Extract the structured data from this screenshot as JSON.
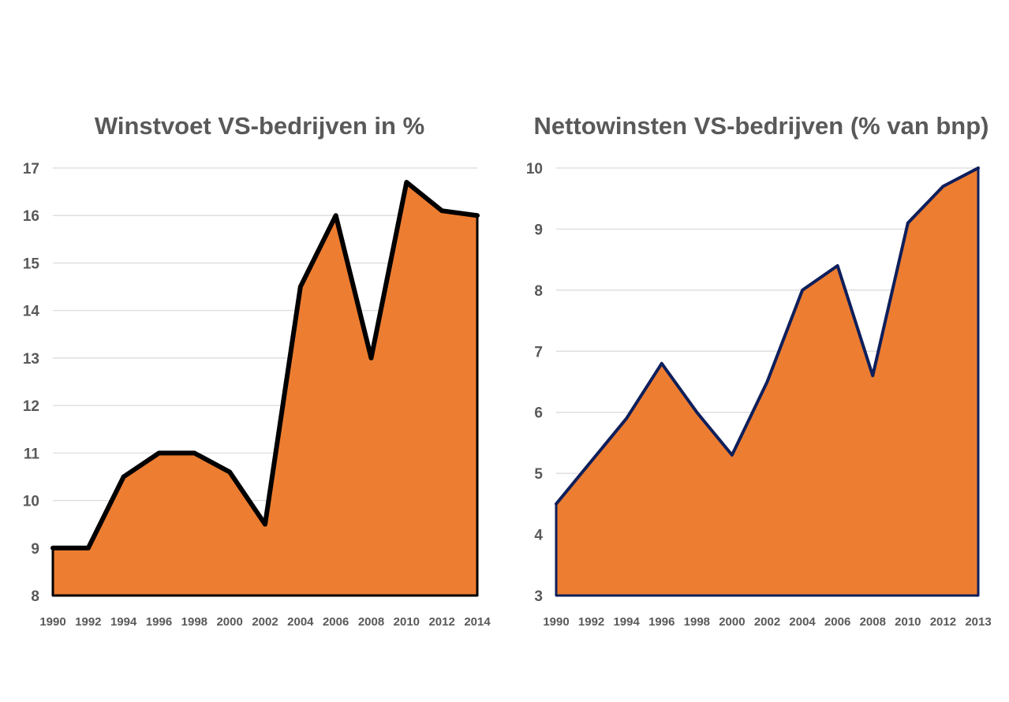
{
  "chart_data": [
    {
      "type": "area",
      "title": "Winstvoet VS-bedrijven  in %",
      "xlabel": "",
      "ylabel": "",
      "ylim": [
        8,
        17
      ],
      "yticks": [
        "8",
        "9",
        "10",
        "11",
        "12",
        "13",
        "14",
        "15",
        "16",
        "17"
      ],
      "xticks": [
        "1990",
        "1992",
        "1994",
        "1996",
        "1998",
        "2000",
        "2002",
        "2004",
        "2006",
        "2008",
        "2010",
        "2012",
        "2014"
      ],
      "x": [
        1990,
        1992,
        1994,
        1996,
        1998,
        2000,
        2002,
        2004,
        2006,
        2008,
        2010,
        2012,
        2014
      ],
      "values": [
        9.0,
        9.0,
        10.5,
        11.0,
        11.0,
        10.6,
        9.5,
        14.5,
        16.0,
        13.0,
        16.7,
        16.1,
        16.0
      ],
      "fill_color": "#ED7D31",
      "line_color": "#000000",
      "grid": true
    },
    {
      "type": "area",
      "title": "Nettowinsten VS-bedrijven  (% van bnp)",
      "xlabel": "",
      "ylabel": "",
      "ylim": [
        3,
        10
      ],
      "yticks": [
        "3",
        "4",
        "5",
        "6",
        "7",
        "8",
        "9",
        "10"
      ],
      "xticks": [
        "1990",
        "1992",
        "1994",
        "1996",
        "1998",
        "2000",
        "2002",
        "2004",
        "2006",
        "2008",
        "2010",
        "2012",
        "2013"
      ],
      "x": [
        "1990",
        "1992",
        "1994",
        "1996",
        "1998",
        "2000",
        "2002",
        "2004",
        "2006",
        "2008",
        "2010",
        "2012",
        "2013"
      ],
      "values": [
        4.5,
        5.2,
        5.9,
        6.8,
        6.0,
        5.3,
        6.5,
        8.0,
        8.4,
        6.6,
        9.1,
        9.7,
        10.0
      ],
      "fill_color": "#ED7D31",
      "line_color": "#0E1F5B",
      "grid": true
    }
  ]
}
